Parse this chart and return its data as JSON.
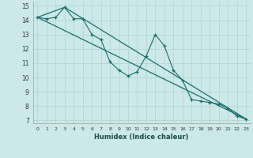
{
  "xlabel": "Humidex (Indice chaleur)",
  "background_color": "#cde8e8",
  "grid_color": "#b8d8d8",
  "line_color": "#1a6b6b",
  "xlim": [
    -0.5,
    23.5
  ],
  "ylim": [
    6.8,
    15.3
  ],
  "xticks": [
    0,
    1,
    2,
    3,
    4,
    5,
    6,
    7,
    8,
    9,
    10,
    11,
    12,
    13,
    14,
    15,
    16,
    17,
    18,
    19,
    20,
    21,
    22,
    23
  ],
  "yticks": [
    7,
    8,
    9,
    10,
    11,
    12,
    13,
    14,
    15
  ],
  "line1_x": [
    0,
    1,
    2,
    3,
    4,
    5,
    6,
    7,
    8,
    9,
    10,
    11,
    12,
    13,
    14,
    15,
    16,
    17,
    18,
    19,
    20,
    21,
    22,
    23
  ],
  "line1_y": [
    14.2,
    14.1,
    14.2,
    14.9,
    14.1,
    14.1,
    13.0,
    12.65,
    11.1,
    10.5,
    10.1,
    10.4,
    11.5,
    13.0,
    12.2,
    10.5,
    9.8,
    8.45,
    8.35,
    8.25,
    8.15,
    7.85,
    7.3,
    7.1
  ],
  "line2_x": [
    0,
    3,
    23
  ],
  "line2_y": [
    14.2,
    14.9,
    7.1
  ],
  "line3_x": [
    0,
    23
  ],
  "line3_y": [
    14.2,
    7.1
  ]
}
